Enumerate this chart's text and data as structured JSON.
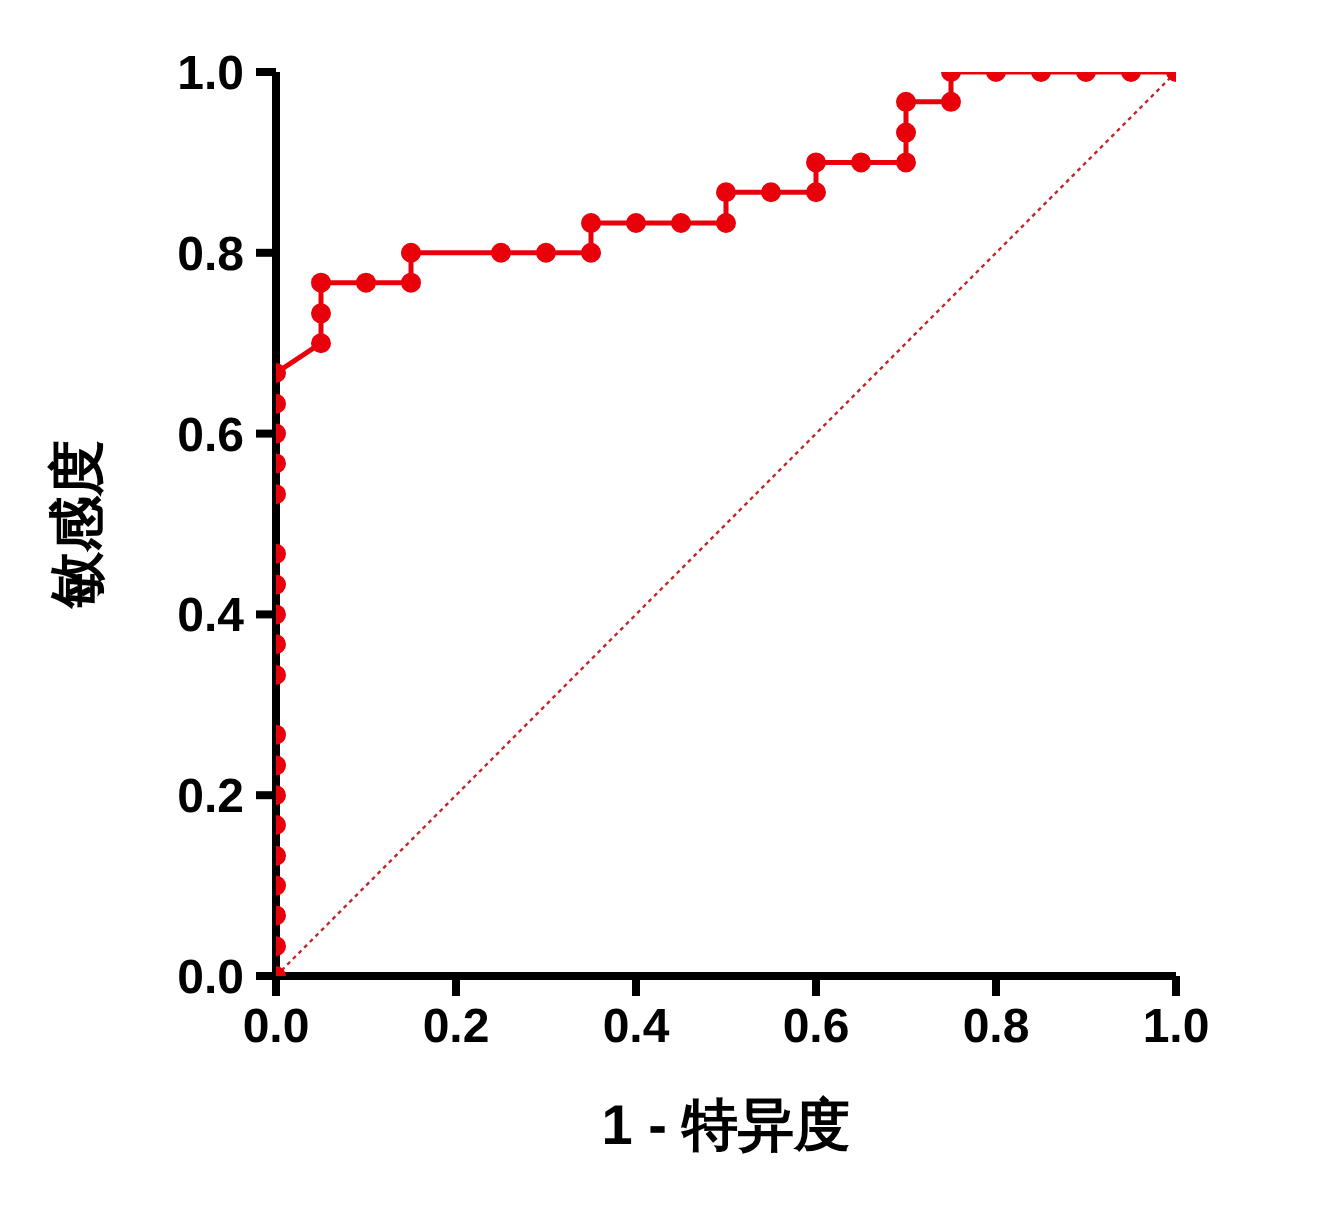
{
  "chart_data": {
    "type": "line",
    "xlabel": "1 - 特异度",
    "ylabel": "敏感度",
    "xlim": [
      0,
      1
    ],
    "ylim": [
      0,
      1
    ],
    "xticks": [
      {
        "value": 0,
        "label": "0.0"
      },
      {
        "value": 0.2,
        "label": "0.2"
      },
      {
        "value": 0.4,
        "label": "0.4"
      },
      {
        "value": 0.6,
        "label": "0.6"
      },
      {
        "value": 0.8,
        "label": "0.8"
      },
      {
        "value": 1,
        "label": "1.0"
      }
    ],
    "yticks": [
      {
        "value": 0,
        "label": "0.0"
      },
      {
        "value": 0.2,
        "label": "0.2"
      },
      {
        "value": 0.4,
        "label": "0.4"
      },
      {
        "value": 0.6,
        "label": "0.6"
      },
      {
        "value": 0.8,
        "label": "0.8"
      },
      {
        "value": 1,
        "label": "1.0"
      }
    ],
    "grid": false,
    "legend": false,
    "series": [
      {
        "color": "#e8000b",
        "marker": "circle",
        "line_style": "solid",
        "x": [
          0,
          0,
          0,
          0,
          0,
          0,
          0,
          0,
          0,
          0,
          0,
          0,
          0,
          0,
          0,
          0,
          0,
          0,
          0,
          0.05,
          0.05,
          0.05,
          0.1,
          0.15,
          0.15,
          0.25,
          0.3,
          0.35,
          0.35,
          0.4,
          0.45,
          0.5,
          0.5,
          0.55,
          0.6,
          0.6,
          0.65,
          0.7,
          0.7,
          0.7,
          0.75,
          0.75,
          0.8,
          0.85,
          0.9,
          0.95,
          1
        ],
        "values": [
          0,
          0.033,
          0.067,
          0.1,
          0.133,
          0.167,
          0.2,
          0.233,
          0.267,
          0.333,
          0.367,
          0.4,
          0.433,
          0.467,
          0.533,
          0.567,
          0.6,
          0.633,
          0.667,
          0.7,
          0.733,
          0.767,
          0.767,
          0.767,
          0.8,
          0.8,
          0.8,
          0.8,
          0.833,
          0.833,
          0.833,
          0.833,
          0.867,
          0.867,
          0.867,
          0.9,
          0.9,
          0.9,
          0.933,
          0.967,
          0.967,
          1,
          1,
          1,
          1,
          1,
          1
        ]
      },
      {
        "color": "#c0262b",
        "marker": "none",
        "line_style": "dotted",
        "x": [
          0,
          1
        ],
        "values": [
          0,
          1
        ]
      }
    ]
  }
}
